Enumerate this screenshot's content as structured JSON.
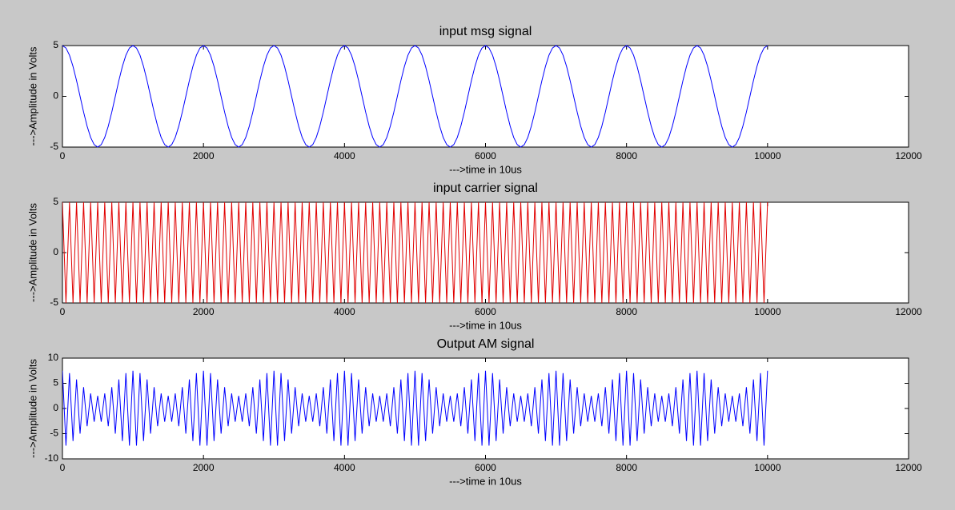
{
  "chart_data": [
    {
      "type": "line",
      "title": "input msg signal",
      "xlabel": "--->time in 10us",
      "ylabel": "--->Amplitude in Volts",
      "color": "#0000ff",
      "xlim": [
        0,
        12000
      ],
      "xticks": [
        0,
        2000,
        4000,
        6000,
        8000,
        10000,
        12000
      ],
      "ylim": [
        -5,
        5
      ],
      "yticks": [
        -5,
        0,
        5
      ],
      "x": [
        0,
        50,
        100,
        150,
        200,
        250,
        300,
        350,
        400,
        450,
        500,
        550,
        600,
        650,
        700,
        750,
        800,
        850,
        900,
        950,
        1000,
        1050,
        1100,
        1150,
        1200,
        1250,
        1300,
        1350,
        1400,
        1450,
        1500,
        1550,
        1600,
        1650,
        1700,
        1750,
        1800,
        1850,
        1900,
        1950,
        2000,
        2050,
        2100,
        2150,
        2200,
        2250,
        2300,
        2350,
        2400,
        2450,
        2500,
        2550,
        2600,
        2650,
        2700,
        2750,
        2800,
        2850,
        2900,
        2950,
        3000,
        3050,
        3100,
        3150,
        3200,
        3250,
        3300,
        3350,
        3400,
        3450,
        3500,
        3550,
        3600,
        3650,
        3700,
        3750,
        3800,
        3850,
        3900,
        3950,
        4000,
        4050,
        4100,
        4150,
        4200,
        4250,
        4300,
        4350,
        4400,
        4450,
        4500,
        4550,
        4600,
        4650,
        4700,
        4750,
        4800,
        4850,
        4900,
        4950,
        5000,
        5050,
        5100,
        5150,
        5200,
        5250,
        5300,
        5350,
        5400,
        5450,
        5500,
        5550,
        5600,
        5650,
        5700,
        5750,
        5800,
        5850,
        5900,
        5950,
        6000,
        6050,
        6100,
        6150,
        6200,
        6250,
        6300,
        6350,
        6400,
        6450,
        6500,
        6550,
        6600,
        6650,
        6700,
        6750,
        6800,
        6850,
        6900,
        6950,
        7000,
        7050,
        7100,
        7150,
        7200,
        7250,
        7300,
        7350,
        7400,
        7450,
        7500,
        7550,
        7600,
        7650,
        7700,
        7750,
        7800,
        7850,
        7900,
        7950,
        8000,
        8050,
        8100,
        8150,
        8200,
        8250,
        8300,
        8350,
        8400,
        8450,
        8500,
        8550,
        8600,
        8650,
        8700,
        8750,
        8800,
        8850,
        8900,
        8950,
        9000,
        9050,
        9100,
        9150,
        9200,
        9250,
        9300,
        9350,
        9400,
        9450,
        9500,
        9550,
        9600,
        9650,
        9700,
        9750,
        9800,
        9850,
        9900,
        9950,
        10000
      ],
      "values": [
        5,
        4.76,
        4.05,
        2.94,
        1.55,
        0,
        -1.55,
        -2.94,
        -4.05,
        -4.76,
        -5,
        -4.76,
        -4.05,
        -2.94,
        -1.55,
        0,
        1.55,
        2.94,
        4.05,
        4.76,
        5,
        4.76,
        4.05,
        2.94,
        1.55,
        0,
        -1.55,
        -2.94,
        -4.05,
        -4.76,
        -5,
        -4.76,
        -4.05,
        -2.94,
        -1.55,
        0,
        1.55,
        2.94,
        4.05,
        4.76,
        5,
        4.76,
        4.05,
        2.94,
        1.55,
        0,
        -1.55,
        -2.94,
        -4.05,
        -4.76,
        -5,
        -4.76,
        -4.05,
        -2.94,
        -1.55,
        0,
        1.55,
        2.94,
        4.05,
        4.76,
        5,
        4.76,
        4.05,
        2.94,
        1.55,
        0,
        -1.55,
        -2.94,
        -4.05,
        -4.76,
        -5,
        -4.76,
        -4.05,
        -2.94,
        -1.55,
        0,
        1.55,
        2.94,
        4.05,
        4.76,
        5,
        4.76,
        4.05,
        2.94,
        1.55,
        0,
        -1.55,
        -2.94,
        -4.05,
        -4.76,
        -5,
        -4.76,
        -4.05,
        -2.94,
        -1.55,
        0,
        1.55,
        2.94,
        4.05,
        4.76,
        5,
        4.76,
        4.05,
        2.94,
        1.55,
        0,
        -1.55,
        -2.94,
        -4.05,
        -4.76,
        -5,
        -4.76,
        -4.05,
        -2.94,
        -1.55,
        0,
        1.55,
        2.94,
        4.05,
        4.76,
        5,
        4.76,
        4.05,
        2.94,
        1.55,
        0,
        -1.55,
        -2.94,
        -4.05,
        -4.76,
        -5,
        -4.76,
        -4.05,
        -2.94,
        -1.55,
        0,
        1.55,
        2.94,
        4.05,
        4.76,
        5,
        4.76,
        4.05,
        2.94,
        1.55,
        0,
        -1.55,
        -2.94,
        -4.05,
        -4.76,
        -5,
        -4.76,
        -4.05,
        -2.94,
        -1.55,
        0,
        1.55,
        2.94,
        4.05,
        4.76,
        5,
        4.76,
        4.05,
        2.94,
        1.55,
        0,
        -1.55,
        -2.94,
        -4.05,
        -4.76,
        -5,
        -4.76,
        -4.05,
        -2.94,
        -1.55,
        0,
        1.55,
        2.94,
        4.05,
        4.76,
        5,
        4.76,
        4.05,
        2.94,
        1.55,
        0,
        -1.55,
        -2.94,
        -4.05,
        -4.76,
        -5,
        -4.76,
        -4.05,
        -2.94,
        -1.55,
        0,
        1.55,
        2.94,
        4.05,
        4.76,
        5
      ]
    },
    {
      "type": "line",
      "title": "input carrier signal",
      "xlabel": "--->time in 10us",
      "ylabel": "--->Amplitude in Volts",
      "color": "#e00000",
      "xlim": [
        0,
        12000
      ],
      "xticks": [
        0,
        2000,
        4000,
        6000,
        8000,
        10000,
        12000
      ],
      "ylim": [
        -5,
        5
      ],
      "yticks": [
        -5,
        0,
        5
      ],
      "x": [
        0,
        50,
        100,
        150,
        200,
        250,
        300,
        350,
        400,
        450,
        500,
        550,
        600,
        650,
        700,
        750,
        800,
        850,
        900,
        950,
        1000,
        1050,
        1100,
        1150,
        1200,
        1250,
        1300,
        1350,
        1400,
        1450,
        1500,
        1550,
        1600,
        1650,
        1700,
        1750,
        1800,
        1850,
        1900,
        1950,
        2000,
        2050,
        2100,
        2150,
        2200,
        2250,
        2300,
        2350,
        2400,
        2450,
        2500,
        2550,
        2600,
        2650,
        2700,
        2750,
        2800,
        2850,
        2900,
        2950,
        3000,
        3050,
        3100,
        3150,
        3200,
        3250,
        3300,
        3350,
        3400,
        3450,
        3500,
        3550,
        3600,
        3650,
        3700,
        3750,
        3800,
        3850,
        3900,
        3950,
        4000,
        4050,
        4100,
        4150,
        4200,
        4250,
        4300,
        4350,
        4400,
        4450,
        4500,
        4550,
        4600,
        4650,
        4700,
        4750,
        4800,
        4850,
        4900,
        4950,
        5000,
        5050,
        5100,
        5150,
        5200,
        5250,
        5300,
        5350,
        5400,
        5450,
        5500,
        5550,
        5600,
        5650,
        5700,
        5750,
        5800,
        5850,
        5900,
        5950,
        6000,
        6050,
        6100,
        6150,
        6200,
        6250,
        6300,
        6350,
        6400,
        6450,
        6500,
        6550,
        6600,
        6650,
        6700,
        6750,
        6800,
        6850,
        6900,
        6950,
        7000,
        7050,
        7100,
        7150,
        7200,
        7250,
        7300,
        7350,
        7400,
        7450,
        7500,
        7550,
        7600,
        7650,
        7700,
        7750,
        7800,
        7850,
        7900,
        7950,
        8000,
        8050,
        8100,
        8150,
        8200,
        8250,
        8300,
        8350,
        8400,
        8450,
        8500,
        8550,
        8600,
        8650,
        8700,
        8750,
        8800,
        8850,
        8900,
        8950,
        9000,
        9050,
        9100,
        9150,
        9200,
        9250,
        9300,
        9350,
        9400,
        9450,
        9500,
        9550,
        9600,
        9650,
        9700,
        9750,
        9800,
        9850,
        9900,
        9950,
        10000
      ],
      "values": [
        5,
        -5,
        5,
        -5,
        5,
        -5,
        5,
        -5,
        5,
        -5,
        5,
        -5,
        5,
        -5,
        5,
        -5,
        5,
        -5,
        5,
        -5,
        5,
        -5,
        5,
        -5,
        5,
        -5,
        5,
        -5,
        5,
        -5,
        5,
        -5,
        5,
        -5,
        5,
        -5,
        5,
        -5,
        5,
        -5,
        5,
        -5,
        5,
        -5,
        5,
        -5,
        5,
        -5,
        5,
        -5,
        5,
        -5,
        5,
        -5,
        5,
        -5,
        5,
        -5,
        5,
        -5,
        5,
        -5,
        5,
        -5,
        5,
        -5,
        5,
        -5,
        5,
        -5,
        5,
        -5,
        5,
        -5,
        5,
        -5,
        5,
        -5,
        5,
        -5,
        5,
        -5,
        5,
        -5,
        5,
        -5,
        5,
        -5,
        5,
        -5,
        5,
        -5,
        5,
        -5,
        5,
        -5,
        5,
        -5,
        5,
        -5,
        5,
        -5,
        5,
        -5,
        5,
        -5,
        5,
        -5,
        5,
        -5,
        5,
        -5,
        5,
        -5,
        5,
        -5,
        5,
        -5,
        5,
        -5,
        5,
        -5,
        5,
        -5,
        5,
        -5,
        5,
        -5,
        5,
        -5,
        5,
        -5,
        5,
        -5,
        5,
        -5,
        5,
        -5,
        5,
        -5,
        5,
        -5,
        5,
        -5,
        5,
        -5,
        5,
        -5,
        5,
        -5,
        5,
        -5,
        5,
        -5,
        5,
        -5,
        5,
        -5,
        5,
        -5,
        5,
        -5,
        5,
        -5,
        5,
        -5,
        5,
        -5,
        5,
        -5,
        5,
        -5,
        5,
        -5,
        5,
        -5,
        5,
        -5,
        5,
        -5,
        5,
        -5,
        5,
        -5,
        5,
        -5,
        5,
        -5,
        5,
        -5,
        5,
        -5,
        5,
        -5,
        5,
        -5,
        5,
        -5,
        5,
        -5,
        5
      ]
    },
    {
      "type": "line",
      "title": "Output AM signal",
      "xlabel": "--->time in 10us",
      "ylabel": "--->Amplitude in Volts",
      "color": "#0000ff",
      "xlim": [
        0,
        12000
      ],
      "xticks": [
        0,
        2000,
        4000,
        6000,
        8000,
        10000,
        12000
      ],
      "ylim": [
        -10,
        10
      ],
      "yticks": [
        -10,
        -5,
        0,
        5,
        10
      ],
      "x": [
        0,
        50,
        100,
        150,
        200,
        250,
        300,
        350,
        400,
        450,
        500,
        550,
        600,
        650,
        700,
        750,
        800,
        850,
        900,
        950,
        1000,
        1050,
        1100,
        1150,
        1200,
        1250,
        1300,
        1350,
        1400,
        1450,
        1500,
        1550,
        1600,
        1650,
        1700,
        1750,
        1800,
        1850,
        1900,
        1950,
        2000,
        2050,
        2100,
        2150,
        2200,
        2250,
        2300,
        2350,
        2400,
        2450,
        2500,
        2550,
        2600,
        2650,
        2700,
        2750,
        2800,
        2850,
        2900,
        2950,
        3000,
        3050,
        3100,
        3150,
        3200,
        3250,
        3300,
        3350,
        3400,
        3450,
        3500,
        3550,
        3600,
        3650,
        3700,
        3750,
        3800,
        3850,
        3900,
        3950,
        4000,
        4050,
        4100,
        4150,
        4200,
        4250,
        4300,
        4350,
        4400,
        4450,
        4500,
        4550,
        4600,
        4650,
        4700,
        4750,
        4800,
        4850,
        4900,
        4950,
        5000,
        5050,
        5100,
        5150,
        5200,
        5250,
        5300,
        5350,
        5400,
        5450,
        5500,
        5550,
        5600,
        5650,
        5700,
        5750,
        5800,
        5850,
        5900,
        5950,
        6000,
        6050,
        6100,
        6150,
        6200,
        6250,
        6300,
        6350,
        6400,
        6450,
        6500,
        6550,
        6600,
        6650,
        6700,
        6750,
        6800,
        6850,
        6900,
        6950,
        7000,
        7050,
        7100,
        7150,
        7200,
        7250,
        7300,
        7350,
        7400,
        7450,
        7500,
        7550,
        7600,
        7650,
        7700,
        7750,
        7800,
        7850,
        7900,
        7950,
        8000,
        8050,
        8100,
        8150,
        8200,
        8250,
        8300,
        8350,
        8400,
        8450,
        8500,
        8550,
        8600,
        8650,
        8700,
        8750,
        8800,
        8850,
        8900,
        8950,
        9000,
        9050,
        9100,
        9150,
        9200,
        9250,
        9300,
        9350,
        9400,
        9450,
        9500,
        9550,
        9600,
        9650,
        9700,
        9750,
        9800,
        9850,
        9900,
        9950,
        10000
      ],
      "values": [
        7.5,
        -7.38,
        7.02,
        -6.47,
        5.77,
        -5,
        4.23,
        -3.53,
        2.98,
        -2.62,
        2.5,
        -2.62,
        2.98,
        -3.53,
        4.23,
        -5,
        5.77,
        -6.47,
        7.02,
        -7.38,
        7.5,
        -7.38,
        7.02,
        -6.47,
        5.77,
        -5,
        4.23,
        -3.53,
        2.98,
        -2.62,
        2.5,
        -2.62,
        2.98,
        -3.53,
        4.23,
        -5,
        5.77,
        -6.47,
        7.02,
        -7.38,
        7.5,
        -7.38,
        7.02,
        -6.47,
        5.77,
        -5,
        4.23,
        -3.53,
        2.98,
        -2.62,
        2.5,
        -2.62,
        2.98,
        -3.53,
        4.23,
        -5,
        5.77,
        -6.47,
        7.02,
        -7.38,
        7.5,
        -7.38,
        7.02,
        -6.47,
        5.77,
        -5,
        4.23,
        -3.53,
        2.98,
        -2.62,
        2.5,
        -2.62,
        2.98,
        -3.53,
        4.23,
        -5,
        5.77,
        -6.47,
        7.02,
        -7.38,
        7.5,
        -7.38,
        7.02,
        -6.47,
        5.77,
        -5,
        4.23,
        -3.53,
        2.98,
        -2.62,
        2.5,
        -2.62,
        2.98,
        -3.53,
        4.23,
        -5,
        5.77,
        -6.47,
        7.02,
        -7.38,
        7.5,
        -7.38,
        7.02,
        -6.47,
        5.77,
        -5,
        4.23,
        -3.53,
        2.98,
        -2.62,
        2.5,
        -2.62,
        2.98,
        -3.53,
        4.23,
        -5,
        5.77,
        -6.47,
        7.02,
        -7.38,
        7.5,
        -7.38,
        7.02,
        -6.47,
        5.77,
        -5,
        4.23,
        -3.53,
        2.98,
        -2.62,
        2.5,
        -2.62,
        2.98,
        -3.53,
        4.23,
        -5,
        5.77,
        -6.47,
        7.02,
        -7.38,
        7.5,
        -7.38,
        7.02,
        -6.47,
        5.77,
        -5,
        4.23,
        -3.53,
        2.98,
        -2.62,
        2.5,
        -2.62,
        2.98,
        -3.53,
        4.23,
        -5,
        5.77,
        -6.47,
        7.02,
        -7.38,
        7.5,
        -7.38,
        7.02,
        -6.47,
        5.77,
        -5,
        4.23,
        -3.53,
        2.98,
        -2.62,
        2.5,
        -2.62,
        2.98,
        -3.53,
        4.23,
        -5,
        5.77,
        -6.47,
        7.02,
        -7.38,
        7.5,
        -7.38,
        7.02,
        -6.47,
        5.77,
        -5,
        4.23,
        -3.53,
        2.98,
        -2.62,
        2.5,
        -2.62,
        2.98,
        -3.53,
        4.23,
        -5,
        5.77,
        -6.47,
        7.02,
        -7.38,
        7.5
      ]
    }
  ]
}
